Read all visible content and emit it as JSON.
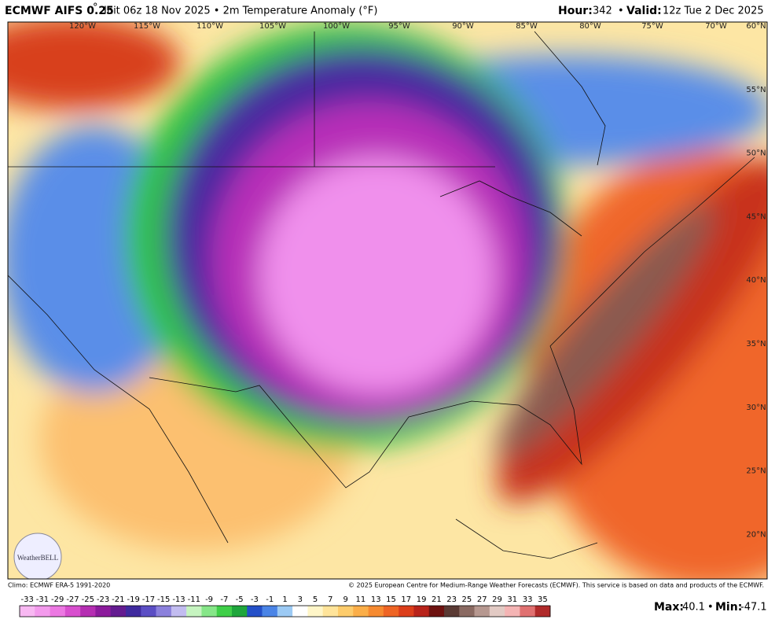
{
  "header": {
    "model": "ECMWF AIFS 0.25",
    "degree": "°",
    "run": "Init 06z 18 Nov 2025 • 2m Temperature Anomaly (°F)",
    "hour_label": "Hour:",
    "hour": "342",
    "separator": "•",
    "valid_label": "Valid:",
    "valid": "12z Tue 2 Dec 2025"
  },
  "map": {
    "longitude_labels": [
      "120°W",
      "115°W",
      "110°W",
      "105°W",
      "100°W",
      "95°W",
      "90°W",
      "85°W",
      "80°W",
      "75°W",
      "70°W"
    ],
    "latitude_labels": [
      "60°N",
      "55°N",
      "50°N",
      "45°N",
      "40°N",
      "35°N",
      "30°N",
      "25°N",
      "20°N"
    ]
  },
  "logo": "WeatherBELL",
  "footer": {
    "climo": "Climo: ECMWF ERA-5 1991-2020",
    "copyright": "© 2025 European Centre for Medium-Range Weather Forecasts (ECMWF). This service is based on data and products of the ECMWF."
  },
  "colorbar": {
    "ticks": [
      -33,
      -31,
      -29,
      -27,
      -25,
      -23,
      -21,
      -19,
      -17,
      -15,
      -13,
      -11,
      -9,
      -7,
      -5,
      -3,
      -1,
      1,
      3,
      5,
      7,
      9,
      11,
      13,
      15,
      17,
      19,
      21,
      23,
      25,
      27,
      29,
      31,
      33,
      35
    ],
    "colors": [
      "#f8b8f2",
      "#f39aec",
      "#ec78e2",
      "#d84fce",
      "#b52eb2",
      "#8c1b9c",
      "#641b90",
      "#3f2a9e",
      "#5b4ec4",
      "#8b80dc",
      "#c2bcf0",
      "#c6f4c0",
      "#86e688",
      "#3fcf48",
      "#1fa63c",
      "#2450c8",
      "#4a84e6",
      "#9ccaf4",
      "#ffffff",
      "#fff6c8",
      "#ffe49a",
      "#fdcc6c",
      "#fbae48",
      "#f68a30",
      "#ee6424",
      "#dc3e1a",
      "#b8231a",
      "#6e1210",
      "#5a3a34",
      "#8a6a62",
      "#b69890",
      "#e2cac4",
      "#f4b4b4",
      "#e07070",
      "#b02a2a"
    ]
  },
  "stats": {
    "max_label": "Max:",
    "max": 40.1,
    "separator": "•",
    "min_label": "Min:",
    "min": -47.1
  }
}
